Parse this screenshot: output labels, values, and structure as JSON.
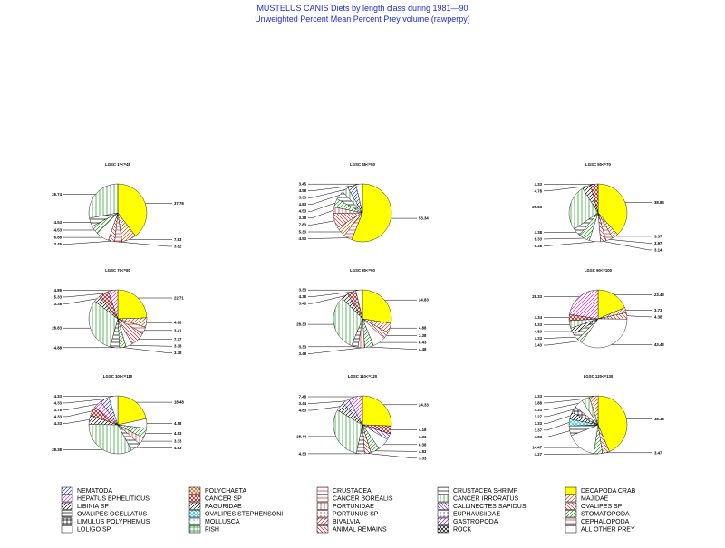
{
  "page": {
    "title_line1": "MUSTELUS CANIS Diets by length class during 1981—90",
    "title_line2": "Unweighted Percent Mean Percent Prey  volume (rawperpy)",
    "title_color": "#1f2bd6"
  },
  "chart_data": {
    "type": "pie",
    "panels": [
      {
        "label": "LGSC 1=<=45",
        "values": [
          37.78,
          7.83,
          3.82,
          3.45,
          6.88,
          4.53,
          4.53,
          26.74
        ]
      },
      {
        "label": "LGSC 45<=50",
        "values": [
          53.34,
          4.53,
          5.33,
          7.83,
          3.38,
          4.53,
          4.83,
          3.33,
          4.58,
          3.45
        ]
      },
      {
        "label": "LGSC 50<=70",
        "values": [
          38.83,
          3.37,
          3.97,
          3.14,
          6.38,
          6.33,
          4.38,
          25.83,
          4.78,
          4.33
        ]
      },
      {
        "label": "LGSC 70<=80",
        "values": [
          22.71,
          4.88,
          3.41,
          7.77,
          3.38,
          3.38,
          4.88,
          28.83,
          3.38,
          5.33,
          4.89
        ]
      },
      {
        "label": "LGSC 80<=90",
        "values": [
          24.83,
          4.88,
          3.38,
          6.43,
          4.48,
          3.48,
          3.33,
          28.33,
          3.48,
          4.38,
          3.33
        ]
      },
      {
        "label": "LGSC 90<=100",
        "values": [
          23.43,
          3.73,
          4.38,
          43.43,
          3.43,
          4.33,
          4.83,
          5.33,
          4.34,
          28.33
        ]
      },
      {
        "label": "LGSC 100<=110",
        "values": [
          18.48,
          4.58,
          4.83,
          3.33,
          4.83,
          28.38,
          4.33,
          4.33,
          3.78,
          4.33,
          4.33
        ]
      },
      {
        "label": "LGSC 110<=120",
        "values": [
          24.33,
          4.18,
          3.33,
          6.38,
          4.83,
          3.33,
          4.33,
          28.44,
          4.83,
          3.44,
          7.48
        ]
      },
      {
        "label": "LGSC 120<=130",
        "values": [
          38.38,
          3.47,
          4.27,
          14.47,
          4.83,
          3.37,
          3.33,
          3.27,
          4.33,
          3.88,
          4.33
        ]
      }
    ],
    "slice_categories": [
      [
        "DECAPODA CRAB",
        "MAJIDAE",
        "CRUSTACEA",
        "OVALIPES SP",
        "ALL OTHER PREY",
        "STOMATOPODA",
        "CRUSTACEA SHRIMP",
        "CANCER IRRORATUS"
      ],
      [
        "DECAPODA CRAB",
        "CANCER BOREALIS",
        "MAJIDAE",
        "OVALIPES SP",
        "PORTUNIDAE",
        "STOMATOPODA",
        "CRUSTACEA SHRIMP",
        "CANCER IRRORATUS",
        "NEMATODA",
        "LOLIGO SP"
      ],
      [
        "DECAPODA CRAB",
        "MAJIDAE",
        "CRUSTACEA",
        "OVALIPES SP",
        "ALL OTHER PREY",
        "STOMATOPODA",
        "CRUSTACEA SHRIMP",
        "CANCER IRRORATUS",
        "LIBINIA SP",
        "CANCER SP"
      ],
      [
        "DECAPODA CRAB",
        "MAJIDAE",
        "CRUSTACEA",
        "OVALIPES SP",
        "ALL OTHER PREY",
        "STOMATOPODA",
        "CRUSTACEA SHRIMP",
        "CANCER IRRORATUS",
        "LIBINIA SP",
        "CANCER SP",
        "HEPATUS EPHELITICUS"
      ],
      [
        "DECAPODA CRAB",
        "MAJIDAE",
        "OVALIPES SP",
        "ALL OTHER PREY",
        "STOMATOPODA",
        "PORTUNIDAE",
        "CRUSTACEA SHRIMP",
        "CANCER IRRORATUS",
        "LIBINIA SP",
        "CANCER SP",
        "LOLIGO SP"
      ],
      [
        "DECAPODA CRAB",
        "MAJIDAE",
        "OVALIPES SP",
        "ALL OTHER PREY",
        "STOMATOPODA",
        "CRUSTACEA SHRIMP",
        "LIBINIA SP",
        "CANCER IRRORATUS",
        "CANCER SP",
        "HEPATUS EPHELITICUS"
      ],
      [
        "DECAPODA CRAB",
        "ALL OTHER PREY",
        "STOMATOPODA",
        "PORTUNIDAE",
        "CRUSTACEA SHRIMP",
        "CANCER IRRORATUS",
        "LIBINIA SP",
        "CANCER SP",
        "HEPATUS EPHELITICUS",
        "NEMATODA",
        "LOLIGO SP"
      ],
      [
        "DECAPODA CRAB",
        "CANCER SP",
        "CALLINECTES SAPIDUS",
        "ALL OTHER PREY",
        "STOMATOPODA",
        "OVALIPES SP",
        "CRUSTACEA SHRIMP",
        "CANCER IRRORATUS",
        "LIBINIA SP",
        "NEMATODA",
        "HEPATUS EPHELITICUS"
      ],
      [
        "DECAPODA CRAB",
        "OVALIPES SP",
        "STOMATOPODA",
        "ALL OTHER PREY",
        "CRUSTACEA SHRIMP",
        "OVALIPES STEPHENSONI",
        "PAGURIDAE",
        "LIMULUS POLYPHEMUS",
        "LOLIGO SP",
        "CANCER IRRORATUS",
        "MAJIDAE"
      ]
    ],
    "legend_placement": "bottom",
    "legend": [
      {
        "name": "NEMATODA",
        "color": "#1f2bd6",
        "pattern": "diag"
      },
      {
        "name": "HEPATUS EPHELITICUS",
        "color": "#e01fd6",
        "pattern": "diag"
      },
      {
        "name": "LIBINIA SP",
        "color": "#000000",
        "pattern": "diag"
      },
      {
        "name": "OVALIPES OCELLATUS",
        "color": "#000000",
        "pattern": "hstripe"
      },
      {
        "name": "LIMULUS POLYPHEMUS",
        "color": "#000000",
        "pattern": "cross"
      },
      {
        "name": "LOLIGO SP",
        "color": "#000000",
        "pattern": "empty"
      },
      {
        "name": "POLYCHAETA",
        "color": "#c84a00",
        "pattern": "xhatch"
      },
      {
        "name": "CANCER SP",
        "color": "#a00000",
        "pattern": "xhatch"
      },
      {
        "name": "PAGURIDAE",
        "color": "#000000",
        "pattern": "diag"
      },
      {
        "name": "OVALIPES STEPHENSONI",
        "color": "#19c8d8",
        "pattern": "xhatch"
      },
      {
        "name": "MOLLUSCA",
        "color": "#19c8d8",
        "pattern": "dots"
      },
      {
        "name": "FISH",
        "color": "#1a9a1a",
        "pattern": "cross"
      },
      {
        "name": "CRUSTACEA",
        "color": "#e01f1f",
        "pattern": "hstripe"
      },
      {
        "name": "CANCER BOREALIS",
        "color": "#e01f1f",
        "pattern": "hstripe"
      },
      {
        "name": "PORTUNIDAE",
        "color": "#e01f1f",
        "pattern": "vstripe"
      },
      {
        "name": "PORTUNUS SP",
        "color": "#e01f1f",
        "pattern": "dots"
      },
      {
        "name": "BIVALVIA",
        "color": "#e01f1f",
        "pattern": "diag"
      },
      {
        "name": "ANIMAL REMAINS",
        "color": "#e01f1f",
        "pattern": "sdiag"
      },
      {
        "name": "CRUSTACEA SHRIMP",
        "color": "#000000",
        "pattern": "hstripe"
      },
      {
        "name": "CANCER IRRORATUS",
        "color": "#1a9a1a",
        "pattern": "vstripe"
      },
      {
        "name": "CALLINECTES SAPIDUS",
        "color": "#7a1fd6",
        "pattern": "sdiag"
      },
      {
        "name": "EUPHAUSIIDAE",
        "color": "#7a1fd6",
        "pattern": "dots"
      },
      {
        "name": "GASTROPODA",
        "color": "#7a1fd6",
        "pattern": "diag"
      },
      {
        "name": "ROCK",
        "color": "#000000",
        "pattern": "xhatch"
      },
      {
        "name": "DECAPODA CRAB",
        "color": "#ffff00",
        "pattern": "solid"
      },
      {
        "name": "MAJIDAE",
        "color": "#c84a00",
        "pattern": "diag"
      },
      {
        "name": "OVALIPES SP",
        "color": "#e01f1f",
        "pattern": "sdiag"
      },
      {
        "name": "STOMATOPODA",
        "color": "#1a9a1a",
        "pattern": "diag"
      },
      {
        "name": "CEPHALOPODA",
        "color": "#e01f1f",
        "pattern": "hstripe"
      },
      {
        "name": "ALL OTHER PREY",
        "color": "#1a9a1a",
        "pattern": "empty"
      }
    ]
  }
}
